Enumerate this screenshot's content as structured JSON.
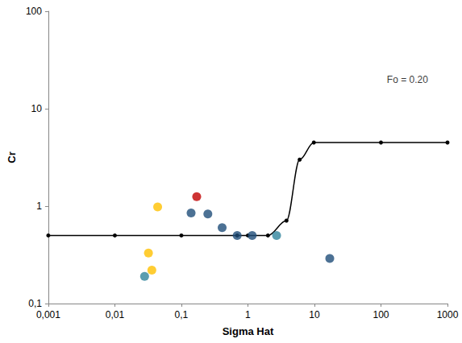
{
  "chart_data": {
    "type": "scatter",
    "x_label": "Sigma Hat",
    "y_label": "Cr",
    "log": true,
    "grid": false,
    "xlim": [
      0.001,
      1000
    ],
    "ylim": [
      0.1,
      100
    ],
    "xticks": [
      {
        "value": 0.001,
        "label": "0,001"
      },
      {
        "value": 0.01,
        "label": "0,01"
      },
      {
        "value": 0.1,
        "label": "0,1"
      },
      1,
      10,
      100,
      1000
    ],
    "yticks": [
      {
        "value": 0.1,
        "label": "0,1"
      },
      1,
      10,
      100
    ],
    "series": [
      {
        "type": "line",
        "color": "#000000",
        "marker": "circle",
        "x": [
          0.001,
          0.01,
          0.1,
          0.69,
          1,
          2,
          3.8,
          6,
          9.8,
          100,
          1000
        ],
        "values": [
          0.5,
          0.5,
          0.5,
          0.5,
          0.5,
          0.5,
          0.71,
          3,
          4.5,
          4.5,
          4.5
        ]
      },
      {
        "type": "scatter",
        "color": "#ffc000",
        "marker": "circle",
        "x": [
          0.044,
          0.032,
          0.036
        ],
        "values": [
          0.98,
          0.33,
          0.22
        ]
      },
      {
        "type": "scatter",
        "color": "#31859c",
        "marker": "circle",
        "x": [
          0.028,
          2.7
        ],
        "values": [
          0.19,
          0.5
        ]
      },
      {
        "type": "scatter",
        "color": "#c00000",
        "marker": "circle",
        "x": [
          0.17
        ],
        "values": [
          1.25
        ]
      },
      {
        "type": "scatter",
        "color": "#1f4e79",
        "marker": "circle",
        "x": [
          0.14,
          0.25,
          0.41,
          0.69,
          1.16,
          17
        ],
        "values": [
          0.85,
          0.83,
          0.6,
          0.5,
          0.5,
          0.29
        ]
      }
    ],
    "annotations": [
      {
        "text": "Fo = 0.20",
        "x": 250,
        "y": 20
      }
    ]
  }
}
